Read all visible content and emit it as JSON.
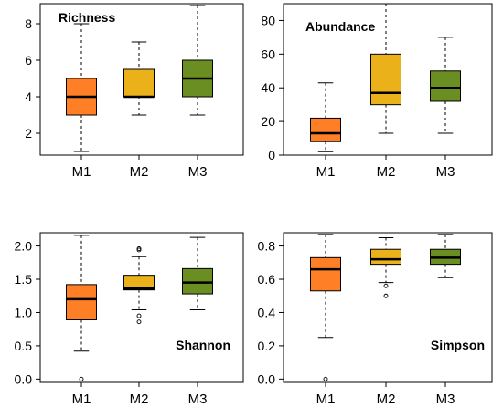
{
  "colors": {
    "M1": "#FF7F27",
    "M2": "#EBB11B",
    "M3": "#6B8E23"
  },
  "chart_data": [
    {
      "type": "box",
      "title": "Richness",
      "categories": [
        "M1",
        "M2",
        "M3"
      ],
      "ylim": [
        0.8,
        9.1
      ],
      "yticks": [
        2,
        4,
        6,
        8
      ],
      "ytick_labels": [
        "2",
        "4",
        "6",
        "8"
      ],
      "boxes": [
        {
          "name": "M1",
          "min": 1,
          "q1": 3,
          "median": 4,
          "q3": 5,
          "max": 8,
          "outliers": []
        },
        {
          "name": "M2",
          "min": 3,
          "q1": 4,
          "median": 4,
          "q3": 5.5,
          "max": 7,
          "outliers": []
        },
        {
          "name": "M3",
          "min": 3,
          "q1": 4,
          "median": 5,
          "q3": 6,
          "max": 9,
          "outliers": []
        }
      ]
    },
    {
      "type": "box",
      "title": "Abundance",
      "categories": [
        "M1",
        "M2",
        "M3"
      ],
      "ylim": [
        0,
        90
      ],
      "yticks": [
        0,
        20,
        40,
        60,
        80
      ],
      "ytick_labels": [
        "0",
        "20",
        "40",
        "60",
        "80"
      ],
      "boxes": [
        {
          "name": "M1",
          "min": 2,
          "q1": 8,
          "median": 13,
          "q3": 22,
          "max": 43,
          "outliers": []
        },
        {
          "name": "M2",
          "min": 13,
          "q1": 30,
          "median": 37,
          "q3": 60,
          "max": 90,
          "outliers": []
        },
        {
          "name": "M3",
          "min": 13,
          "q1": 32,
          "median": 40,
          "q3": 50,
          "max": 70,
          "outliers": []
        }
      ]
    },
    {
      "type": "box",
      "title": "Shannon",
      "categories": [
        "M1",
        "M2",
        "M3"
      ],
      "ylim": [
        -0.05,
        2.2
      ],
      "yticks": [
        0.0,
        0.5,
        1.0,
        1.5,
        2.0
      ],
      "ytick_labels": [
        "0.0",
        "0.5",
        "1.0",
        "1.5",
        "2.0"
      ],
      "boxes": [
        {
          "name": "M1",
          "min": 0.42,
          "q1": 0.89,
          "median": 1.2,
          "q3": 1.42,
          "max": 2.16,
          "outliers": [
            0.0
          ]
        },
        {
          "name": "M2",
          "min": 1.04,
          "q1": 1.34,
          "median": 1.36,
          "q3": 1.56,
          "max": 1.84,
          "outliers": [
            1.94,
            1.96,
            0.95,
            0.86
          ]
        },
        {
          "name": "M3",
          "min": 1.04,
          "q1": 1.28,
          "median": 1.45,
          "q3": 1.66,
          "max": 2.13,
          "outliers": []
        }
      ]
    },
    {
      "type": "box",
      "title": "Simpson",
      "categories": [
        "M1",
        "M2",
        "M3"
      ],
      "ylim": [
        -0.02,
        0.88
      ],
      "yticks": [
        0.0,
        0.2,
        0.4,
        0.6,
        0.8
      ],
      "ytick_labels": [
        "0.0",
        "0.2",
        "0.4",
        "0.6",
        "0.8"
      ],
      "boxes": [
        {
          "name": "M1",
          "min": 0.25,
          "q1": 0.53,
          "median": 0.66,
          "q3": 0.73,
          "max": 0.87,
          "outliers": [
            0.0
          ]
        },
        {
          "name": "M2",
          "min": 0.58,
          "q1": 0.69,
          "median": 0.72,
          "q3": 0.78,
          "max": 0.85,
          "outliers": [
            0.56,
            0.5
          ]
        },
        {
          "name": "M3",
          "min": 0.61,
          "q1": 0.69,
          "median": 0.73,
          "q3": 0.78,
          "max": 0.87,
          "outliers": []
        }
      ]
    }
  ]
}
